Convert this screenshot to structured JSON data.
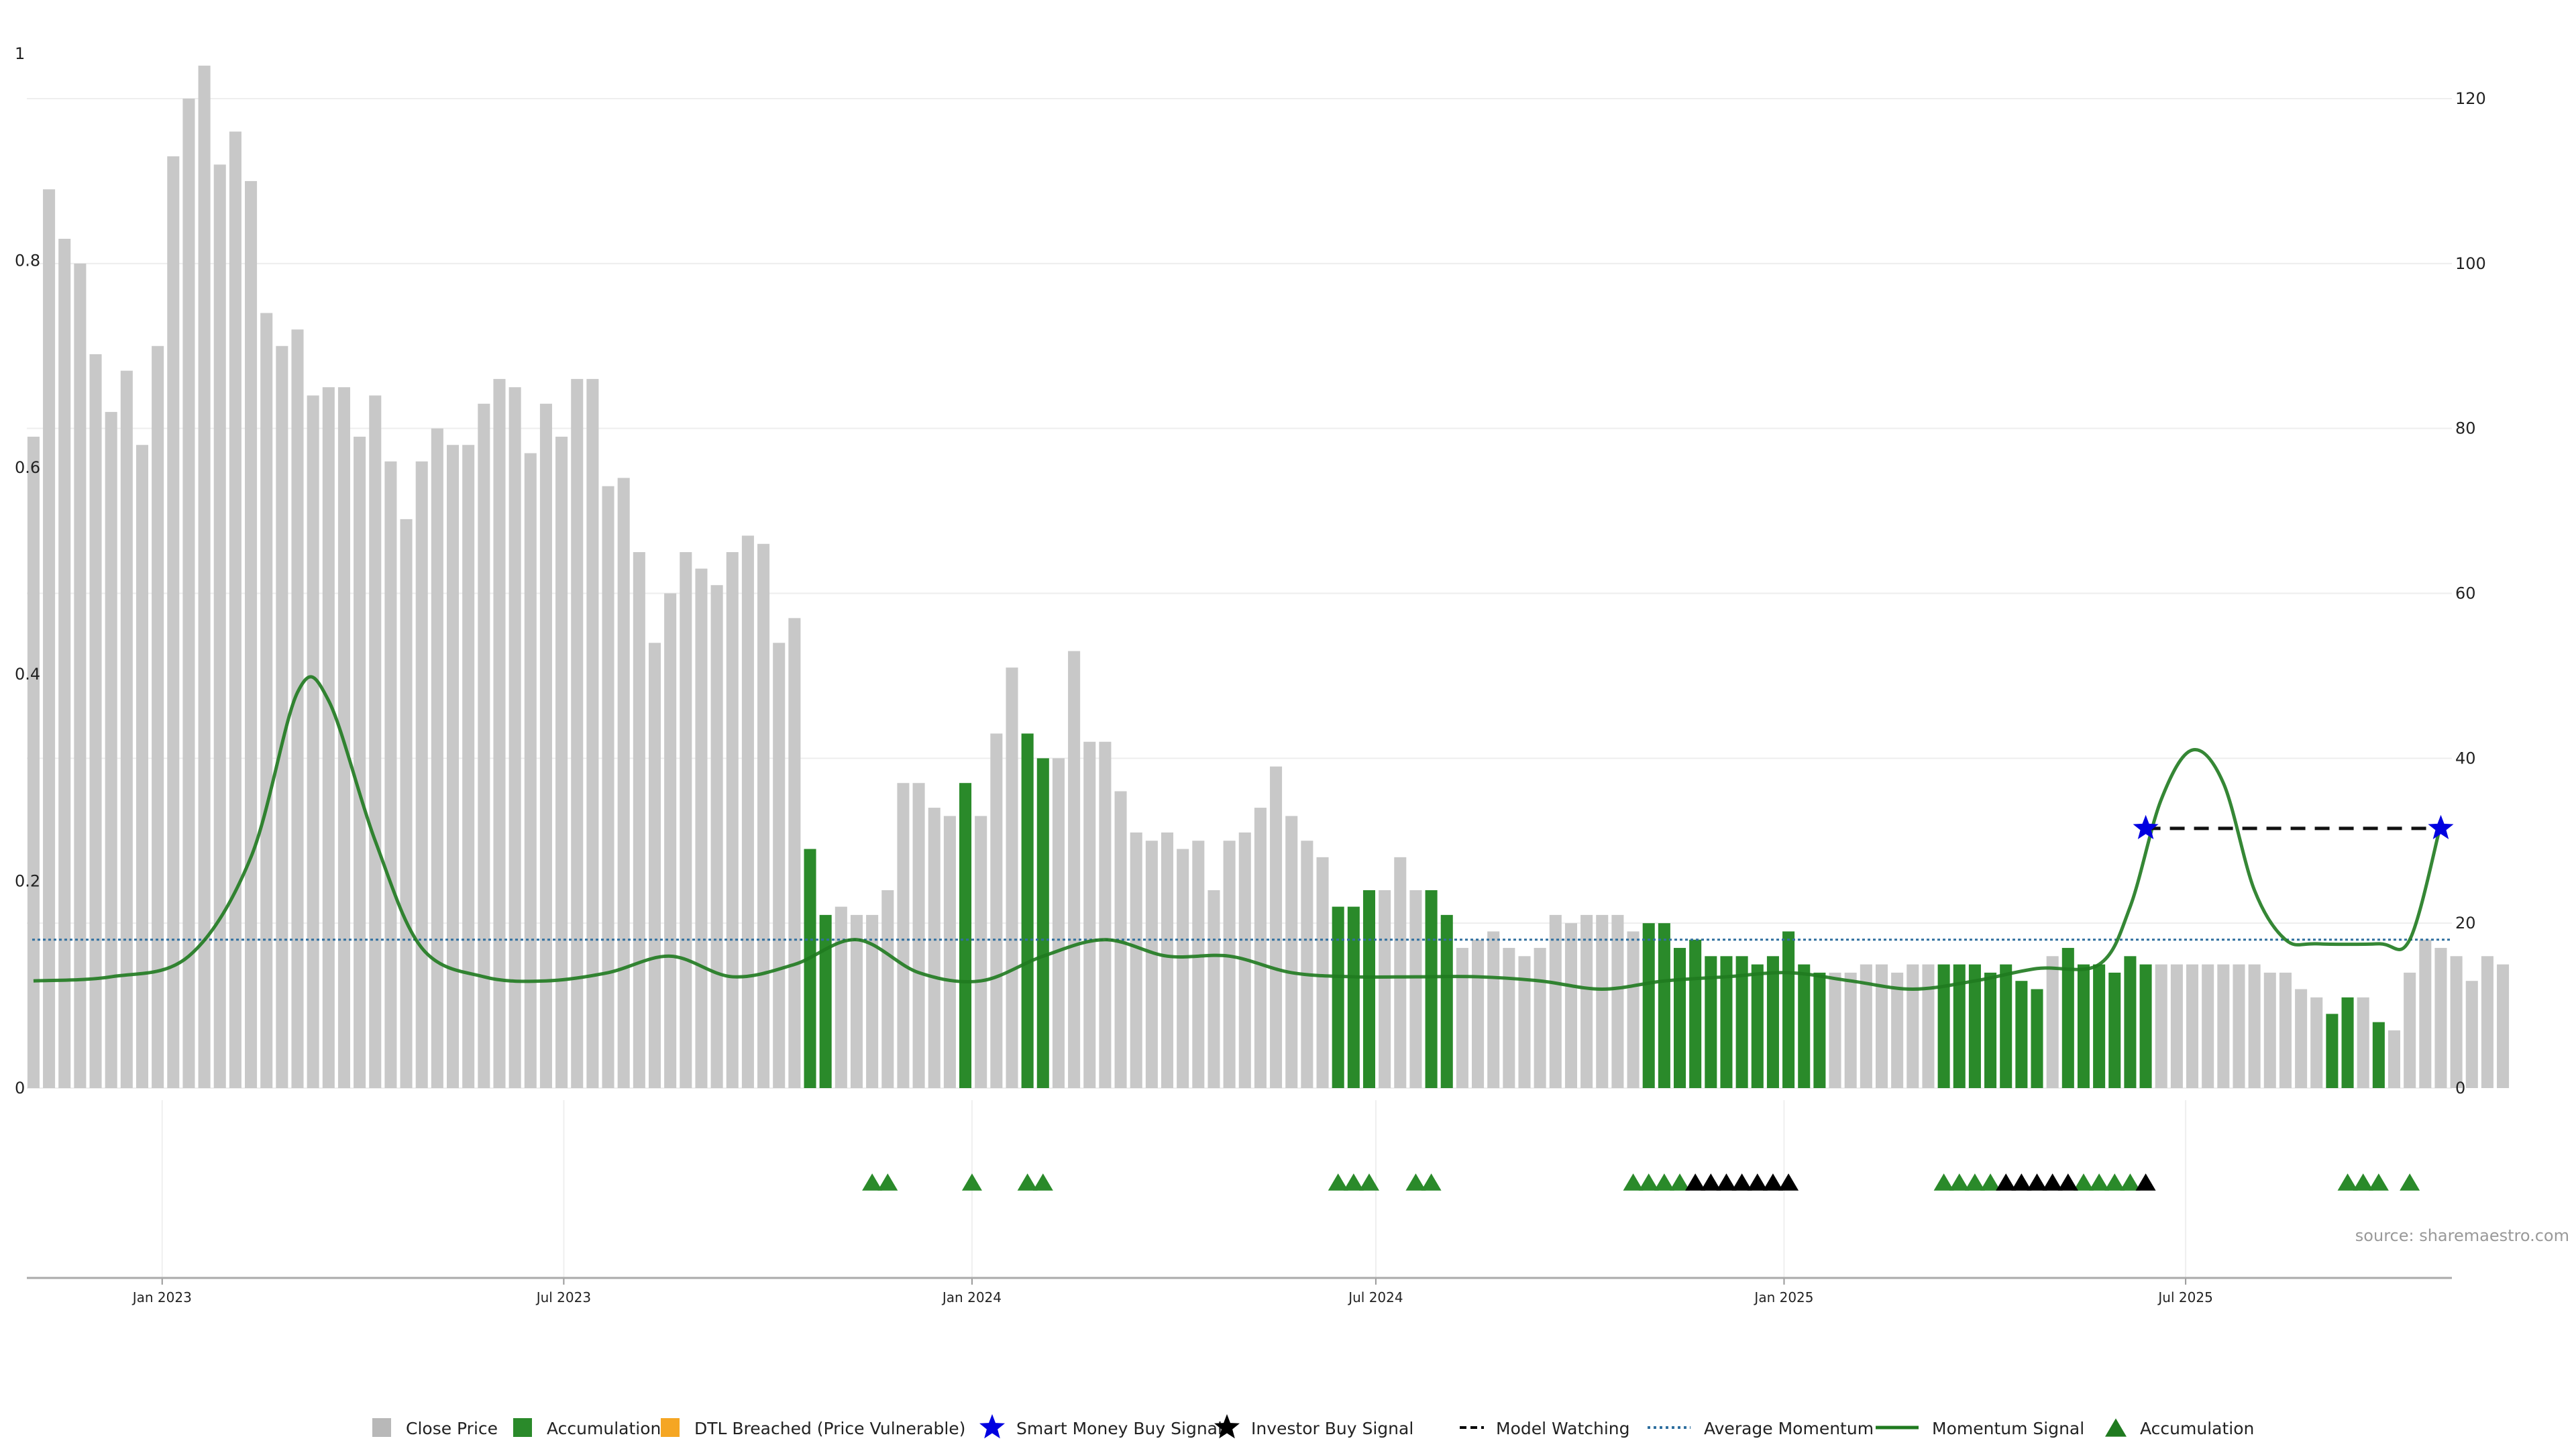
{
  "chart_data": {
    "type": "bar",
    "left_axis": {
      "ticks": [
        "0",
        "0.2",
        "0.4",
        "0.6",
        "0.8",
        "1"
      ],
      "ylim": [
        0,
        1
      ]
    },
    "right_axis": {
      "ticks": [
        "0",
        "20",
        "40",
        "60",
        "80",
        "100",
        "120"
      ],
      "ylim": [
        0,
        120
      ]
    },
    "x_axis": {
      "range": [
        "2022-11-01",
        "2025-10-29"
      ],
      "ticks": [
        {
          "label": "Jan 2023",
          "date": "2023-01-01"
        },
        {
          "label": "Jul 2023",
          "date": "2023-07-01"
        },
        {
          "label": "Jan 2024",
          "date": "2024-01-01"
        },
        {
          "label": "Jul 2024",
          "date": "2024-07-01"
        },
        {
          "label": "Jan 2025",
          "date": "2025-01-01"
        },
        {
          "label": "Jul 2025",
          "date": "2025-07-01"
        }
      ]
    },
    "grid": true,
    "legend_position": "bottom",
    "source": "source: sharemaestro.com",
    "colors": {
      "close": "#c8c8c8",
      "accumulation": "#2a8a2a",
      "dtl": "#f5a623",
      "smart_money": "#0000e0",
      "investor": "#000000",
      "avg_momentum": "#2f6f9f",
      "momentum": "#1f7a1f"
    },
    "bars": {
      "start": "2022-11-04",
      "step_days": 7,
      "values": [
        79,
        109,
        103,
        100,
        89,
        82,
        87,
        78,
        90,
        113,
        120,
        124,
        112,
        116,
        110,
        94,
        90,
        92,
        84,
        85,
        85,
        79,
        84,
        76,
        69,
        76,
        80,
        78,
        78,
        83,
        86,
        85,
        77,
        83,
        79,
        86,
        86,
        73,
        74,
        65,
        54,
        60,
        65,
        63,
        61,
        65,
        67,
        66,
        54,
        57,
        29,
        21,
        22,
        21,
        21,
        24,
        37,
        37,
        34,
        33,
        37,
        33,
        43,
        51,
        43,
        40,
        40,
        53,
        42,
        42,
        36,
        31,
        30,
        31,
        29,
        30,
        24,
        30,
        31,
        34,
        39,
        33,
        30,
        28,
        22,
        22,
        24,
        24,
        28,
        24,
        24,
        21,
        17,
        18,
        19,
        17,
        16,
        17,
        21,
        20,
        21,
        21,
        21,
        19,
        20,
        20,
        17,
        18,
        16,
        16,
        16,
        15,
        16,
        19,
        15,
        14,
        14,
        14,
        15,
        15,
        14,
        15,
        15,
        15,
        15,
        15,
        14,
        15,
        13,
        12,
        16,
        17,
        15,
        15,
        14,
        16,
        15,
        15,
        15,
        15,
        15,
        15,
        15,
        15,
        14,
        14,
        12,
        11,
        9,
        11,
        11,
        8,
        7,
        14,
        18,
        17,
        16,
        13,
        16,
        15
      ],
      "accumulation_ranges": [
        [
          50,
          51
        ],
        [
          60,
          60
        ],
        [
          64,
          65
        ],
        [
          84,
          86
        ],
        [
          90,
          91
        ],
        [
          104,
          115
        ],
        [
          123,
          129
        ],
        [
          131,
          136
        ],
        [
          148,
          149
        ],
        [
          151,
          151
        ]
      ]
    },
    "average_momentum": 18,
    "momentum_signal": {
      "x": [
        "2022-11-04",
        "2022-12-09",
        "2023-01-13",
        "2023-02-10",
        "2023-03-03",
        "2023-03-17",
        "2023-04-07",
        "2023-04-28",
        "2023-05-26",
        "2023-06-23",
        "2023-07-21",
        "2023-08-18",
        "2023-09-15",
        "2023-10-13",
        "2023-11-10",
        "2023-12-08",
        "2024-01-05",
        "2024-02-02",
        "2024-03-01",
        "2024-03-29",
        "2024-04-26",
        "2024-05-24",
        "2024-06-21",
        "2024-07-19",
        "2024-08-16",
        "2024-09-13",
        "2024-10-11",
        "2024-11-08",
        "2024-12-06",
        "2025-01-03",
        "2025-01-31",
        "2025-02-28",
        "2025-03-28",
        "2025-04-25",
        "2025-05-23",
        "2025-06-06",
        "2025-06-20",
        "2025-07-04",
        "2025-07-18",
        "2025-08-01",
        "2025-08-15",
        "2025-08-29",
        "2025-09-26",
        "2025-10-10",
        "2025-10-24"
      ],
      "y": [
        13,
        13.5,
        16,
        28,
        48,
        47,
        30,
        17,
        13.5,
        13,
        14,
        16,
        13.5,
        15,
        18,
        14,
        13,
        16,
        18,
        16,
        16,
        14,
        13.5,
        13.5,
        13.5,
        13,
        12,
        13,
        13.5,
        14,
        13,
        12,
        13,
        14.5,
        15,
        22,
        35,
        41,
        37,
        24,
        18,
        17.5,
        17.5,
        18,
        32
      ]
    },
    "model_watching": {
      "x": [
        "2025-06-13",
        "2025-10-24"
      ],
      "y": 31.5
    },
    "smart_money_buy_signals": [
      {
        "date": "2025-06-13",
        "y": 31.5
      },
      {
        "date": "2025-10-24",
        "y": 31.5
      }
    ],
    "accumulation_markers": [
      "2023-11-17",
      "2023-11-24",
      "2024-01-01",
      "2024-01-26",
      "2024-02-02",
      "2024-06-14",
      "2024-06-21",
      "2024-06-28",
      "2024-07-19",
      "2024-07-26",
      "2024-10-25",
      "2024-11-01",
      "2024-11-08",
      "2024-11-15",
      "2025-03-14",
      "2025-03-21",
      "2025-03-28",
      "2025-04-04",
      "2025-05-16",
      "2025-05-23",
      "2025-05-30",
      "2025-06-06",
      "2025-09-12",
      "2025-09-19",
      "2025-09-26",
      "2025-10-10"
    ],
    "investor_markers": [
      "2024-11-22",
      "2024-11-29",
      "2024-12-06",
      "2024-12-13",
      "2024-12-20",
      "2024-12-27",
      "2025-01-03",
      "2025-04-11",
      "2025-04-18",
      "2025-04-25",
      "2025-05-02",
      "2025-05-09",
      "2025-06-13"
    ],
    "legend": [
      {
        "key": "close",
        "label": "Close Price",
        "kind": "square",
        "color": "#b8b8b8"
      },
      {
        "key": "accumulation",
        "label": "Accumulation",
        "kind": "square",
        "color": "#2a8a2a"
      },
      {
        "key": "dtl",
        "label": "DTL Breached (Price Vulnerable)",
        "kind": "square",
        "color": "#f5a623"
      },
      {
        "key": "smart",
        "label": "Smart Money Buy Signal",
        "kind": "star",
        "color": "#0000e0"
      },
      {
        "key": "investor",
        "label": "Investor Buy Signal",
        "kind": "star",
        "color": "#000000"
      },
      {
        "key": "watching",
        "label": "Model Watching",
        "kind": "dash",
        "color": "#000000"
      },
      {
        "key": "avg",
        "label": "Average Momentum",
        "kind": "dot",
        "color": "#2f6f9f"
      },
      {
        "key": "mom",
        "label": "Momentum Signal",
        "kind": "line",
        "color": "#1f7a1f"
      },
      {
        "key": "acc_marker",
        "label": "Accumulation",
        "kind": "triangle",
        "color": "#1f7a1f"
      }
    ]
  }
}
